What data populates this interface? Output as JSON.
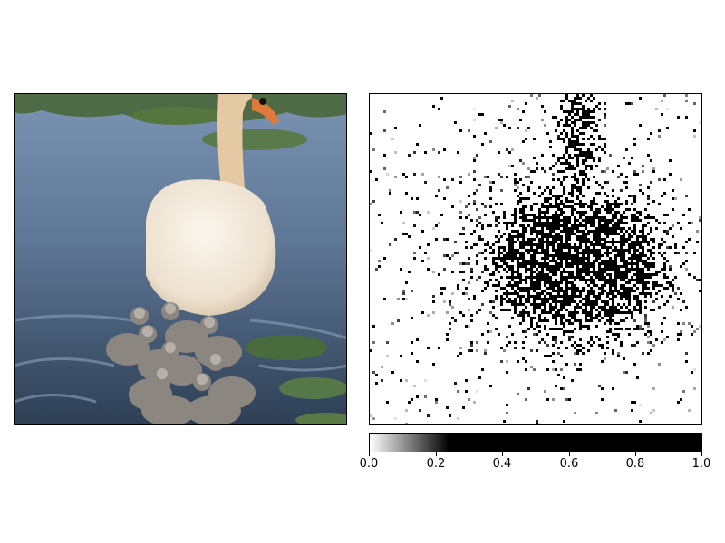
{
  "colorbar": {
    "ticks": [
      "0.0",
      "0.2",
      "0.4",
      "0.6",
      "0.8",
      "1.0"
    ],
    "values": [
      0.0,
      0.2,
      0.4,
      0.6,
      0.8,
      1.0
    ]
  }
}
